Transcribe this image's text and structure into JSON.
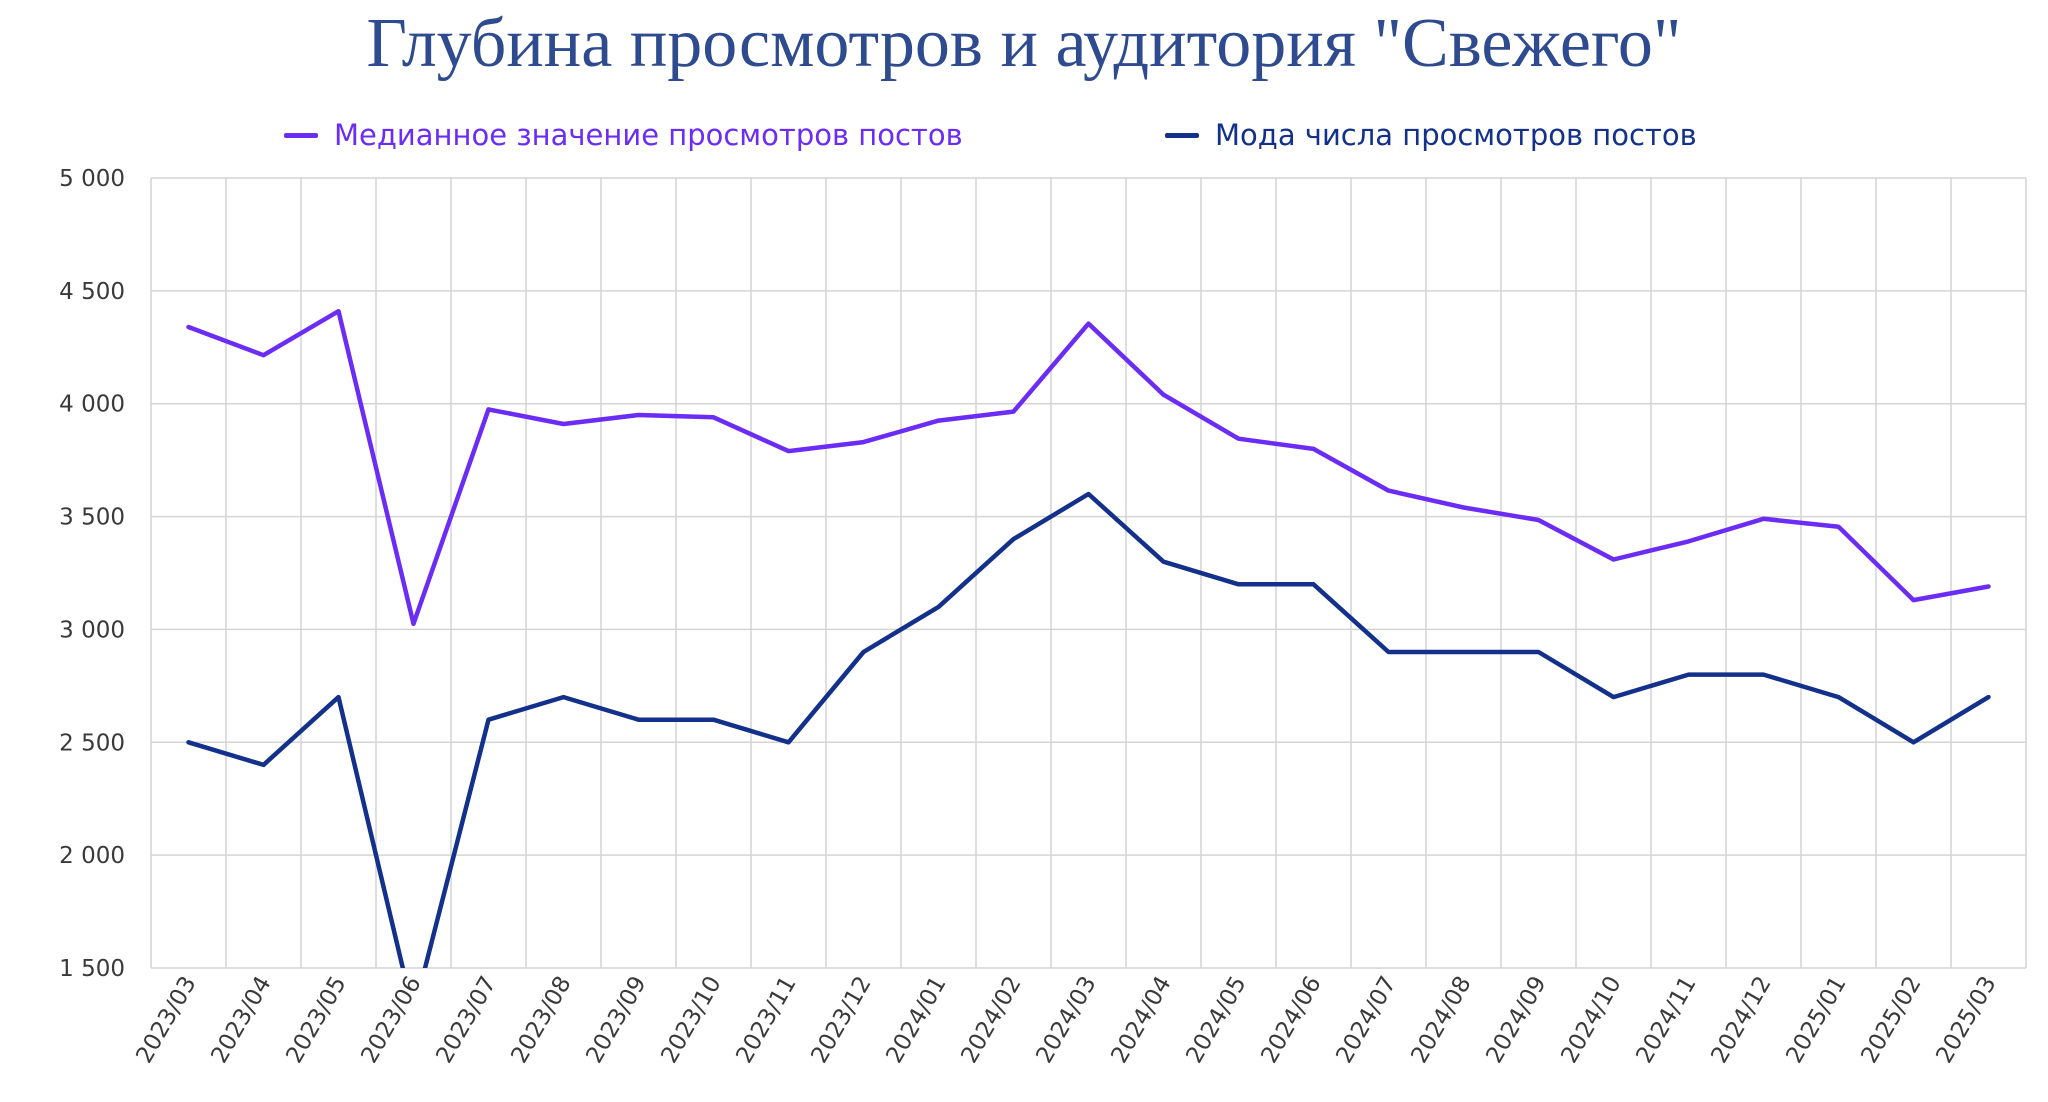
{
  "chart_data": {
    "type": "line",
    "title": "Глубина просмотров и аудитория \"Свежего\"",
    "xlabel": "",
    "ylabel": "",
    "categories": [
      "2023/03",
      "2023/04",
      "2023/05",
      "2023/06",
      "2023/07",
      "2023/08",
      "2023/09",
      "2023/10",
      "2023/11",
      "2023/12",
      "2024/01",
      "2024/02",
      "2024/03",
      "2024/04",
      "2024/05",
      "2024/06",
      "2024/07",
      "2024/08",
      "2024/09",
      "2024/10",
      "2024/11",
      "2024/12",
      "2025/01",
      "2025/02",
      "2025/03"
    ],
    "ylim": [
      1500,
      5000
    ],
    "yticks": [
      1500,
      2000,
      2500,
      3000,
      3500,
      4000,
      4500,
      5000
    ],
    "ytick_labels": [
      "1 500",
      "2 000",
      "2 500",
      "3 000",
      "3 500",
      "4 000",
      "4 500",
      "5 000"
    ],
    "grid": true,
    "legend_position": "top",
    "series": [
      {
        "name": "Медианное значение просмотров постов",
        "color": "#6b2cf5",
        "values": [
          4340,
          4215,
          4410,
          3025,
          3975,
          3910,
          3950,
          3940,
          3790,
          3830,
          3925,
          3965,
          4355,
          4040,
          3845,
          3800,
          3615,
          3540,
          3485,
          3310,
          3390,
          3490,
          3455,
          3130,
          3190
        ]
      },
      {
        "name": "Мода числа просмотров постов",
        "color": "#13318a",
        "values": [
          2500,
          2400,
          2700,
          1300,
          2600,
          2700,
          2600,
          2600,
          2500,
          2900,
          3100,
          3400,
          3600,
          3300,
          3200,
          3200,
          2900,
          2900,
          2900,
          2700,
          2800,
          2800,
          2700,
          2500,
          2700
        ]
      }
    ]
  }
}
